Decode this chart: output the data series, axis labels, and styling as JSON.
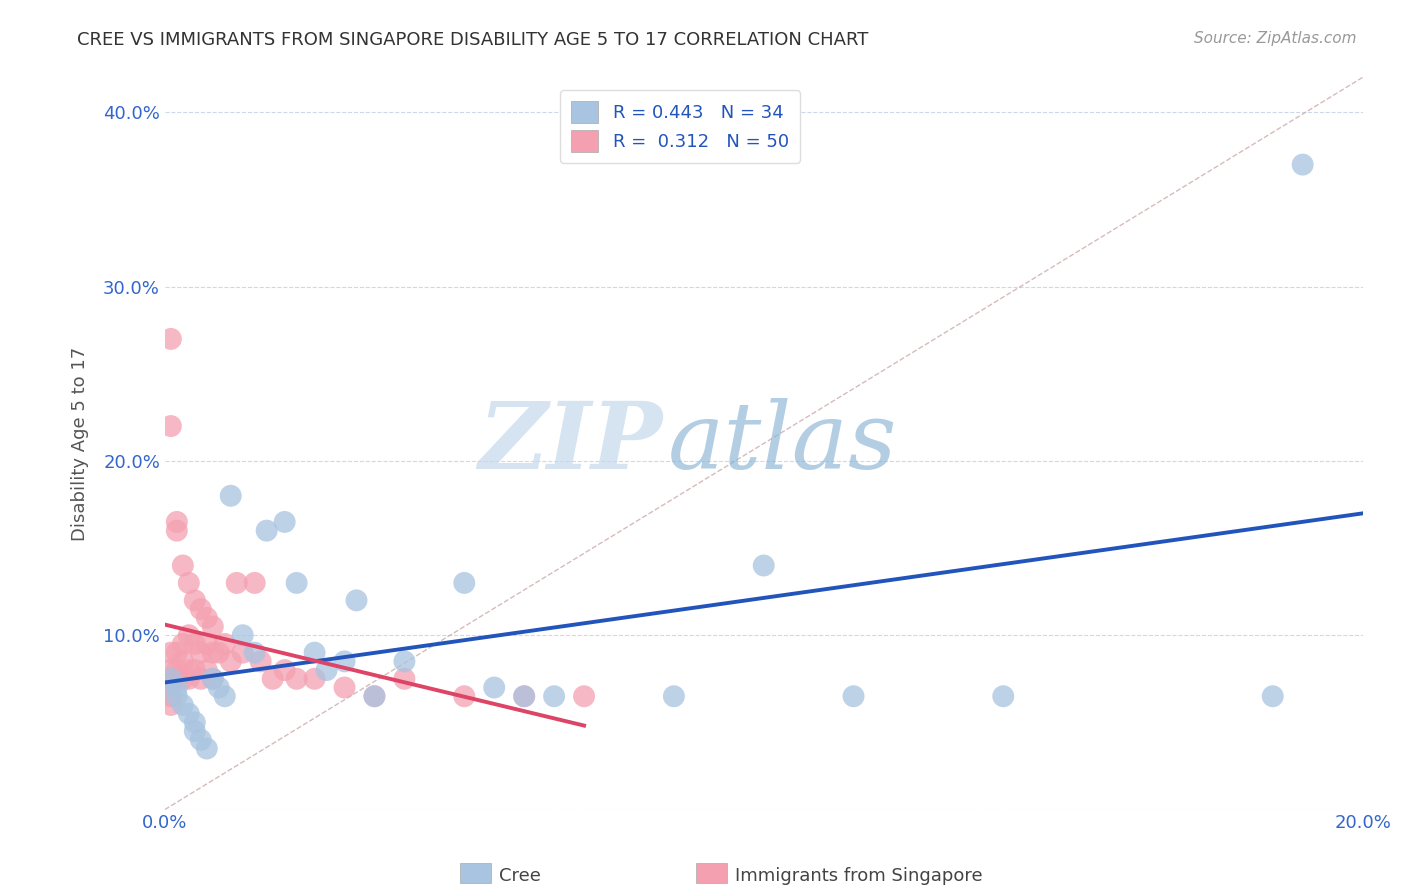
{
  "title": "CREE VS IMMIGRANTS FROM SINGAPORE DISABILITY AGE 5 TO 17 CORRELATION CHART",
  "source": "Source: ZipAtlas.com",
  "ylabel": "Disability Age 5 to 17",
  "xlim": [
    0.0,
    0.2
  ],
  "ylim": [
    0.0,
    0.42
  ],
  "xticks": [
    0.0,
    0.05,
    0.1,
    0.15,
    0.2
  ],
  "xticklabels": [
    "0.0%",
    "",
    "",
    "",
    "20.0%"
  ],
  "yticks": [
    0.0,
    0.1,
    0.2,
    0.3,
    0.4
  ],
  "yticklabels": [
    "",
    "10.0%",
    "20.0%",
    "30.0%",
    "40.0%"
  ],
  "cree_R": 0.443,
  "cree_N": 34,
  "sing_R": 0.312,
  "sing_N": 50,
  "cree_color": "#a8c4e0",
  "sing_color": "#f4a0b0",
  "cree_line_color": "#2255bb",
  "sing_line_color": "#dd4466",
  "diagonal_color": "#ccaaaa",
  "watermark_zip": "ZIP",
  "watermark_atlas": "atlas",
  "legend_label_cree": "Cree",
  "legend_label_sing": "Immigrants from Singapore",
  "cree_x": [
    0.001,
    0.002,
    0.002,
    0.003,
    0.004,
    0.005,
    0.005,
    0.006,
    0.007,
    0.008,
    0.009,
    0.01,
    0.011,
    0.013,
    0.015,
    0.017,
    0.02,
    0.022,
    0.025,
    0.027,
    0.03,
    0.032,
    0.035,
    0.04,
    0.05,
    0.055,
    0.06,
    0.065,
    0.085,
    0.1,
    0.115,
    0.14,
    0.185,
    0.19
  ],
  "cree_y": [
    0.075,
    0.07,
    0.065,
    0.06,
    0.055,
    0.05,
    0.045,
    0.04,
    0.035,
    0.075,
    0.07,
    0.065,
    0.18,
    0.1,
    0.09,
    0.16,
    0.165,
    0.13,
    0.09,
    0.08,
    0.085,
    0.12,
    0.065,
    0.085,
    0.13,
    0.07,
    0.065,
    0.065,
    0.065,
    0.14,
    0.065,
    0.065,
    0.065,
    0.37
  ],
  "sing_x": [
    0.001,
    0.001,
    0.001,
    0.001,
    0.001,
    0.001,
    0.001,
    0.001,
    0.002,
    0.002,
    0.002,
    0.002,
    0.002,
    0.003,
    0.003,
    0.003,
    0.003,
    0.004,
    0.004,
    0.004,
    0.004,
    0.005,
    0.005,
    0.005,
    0.006,
    0.006,
    0.006,
    0.007,
    0.007,
    0.007,
    0.008,
    0.008,
    0.008,
    0.009,
    0.01,
    0.011,
    0.012,
    0.013,
    0.015,
    0.016,
    0.018,
    0.02,
    0.022,
    0.025,
    0.03,
    0.035,
    0.04,
    0.05,
    0.06,
    0.07
  ],
  "sing_y": [
    0.27,
    0.22,
    0.09,
    0.08,
    0.075,
    0.07,
    0.065,
    0.06,
    0.165,
    0.16,
    0.09,
    0.08,
    0.075,
    0.14,
    0.095,
    0.085,
    0.075,
    0.13,
    0.1,
    0.08,
    0.075,
    0.12,
    0.095,
    0.08,
    0.115,
    0.09,
    0.075,
    0.11,
    0.095,
    0.08,
    0.105,
    0.09,
    0.075,
    0.09,
    0.095,
    0.085,
    0.13,
    0.09,
    0.13,
    0.085,
    0.075,
    0.08,
    0.075,
    0.075,
    0.07,
    0.065,
    0.075,
    0.065,
    0.065,
    0.065
  ]
}
